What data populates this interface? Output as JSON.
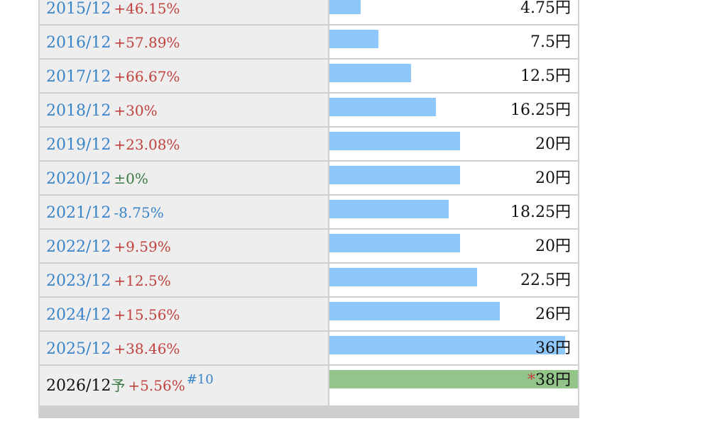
{
  "rows": [
    {
      "period": "2015/12",
      "change": "+46.15%",
      "dir": "up",
      "value": "4.75円",
      "amount": 4.75
    },
    {
      "period": "2016/12",
      "change": "+57.89%",
      "dir": "up",
      "value": "7.5円",
      "amount": 7.5
    },
    {
      "period": "2017/12",
      "change": "+66.67%",
      "dir": "up",
      "value": "12.5円",
      "amount": 12.5
    },
    {
      "period": "2018/12",
      "change": "+30%",
      "dir": "up",
      "value": "16.25円",
      "amount": 16.25
    },
    {
      "period": "2019/12",
      "change": "+23.08%",
      "dir": "up",
      "value": "20円",
      "amount": 20
    },
    {
      "period": "2020/12",
      "change": "±0%",
      "dir": "flat",
      "value": "20円",
      "amount": 20
    },
    {
      "period": "2021/12",
      "change": "-8.75%",
      "dir": "down",
      "value": "18.25円",
      "amount": 18.25
    },
    {
      "period": "2022/12",
      "change": "+9.59%",
      "dir": "up",
      "value": "20円",
      "amount": 20
    },
    {
      "period": "2023/12",
      "change": "+12.5%",
      "dir": "up",
      "value": "22.5円",
      "amount": 22.5
    },
    {
      "period": "2024/12",
      "change": "+15.56%",
      "dir": "up",
      "value": "26円",
      "amount": 26
    },
    {
      "period": "2025/12",
      "change": "+38.46%",
      "dir": "up",
      "value": "36円",
      "amount": 36
    }
  ],
  "forecast": {
    "period": "2026/12",
    "marker": "予",
    "change": "+5.56%",
    "ref": "#10",
    "asterisk": "*",
    "value": "38円",
    "amount": 38
  },
  "colors": {
    "bar_actual": "#8ec7fb",
    "bar_forecast": "#93c58a",
    "period": "#3a84c9",
    "increase": "#c0423e",
    "decrease": "#3a84c9",
    "unchanged": "#3a7a44"
  }
}
